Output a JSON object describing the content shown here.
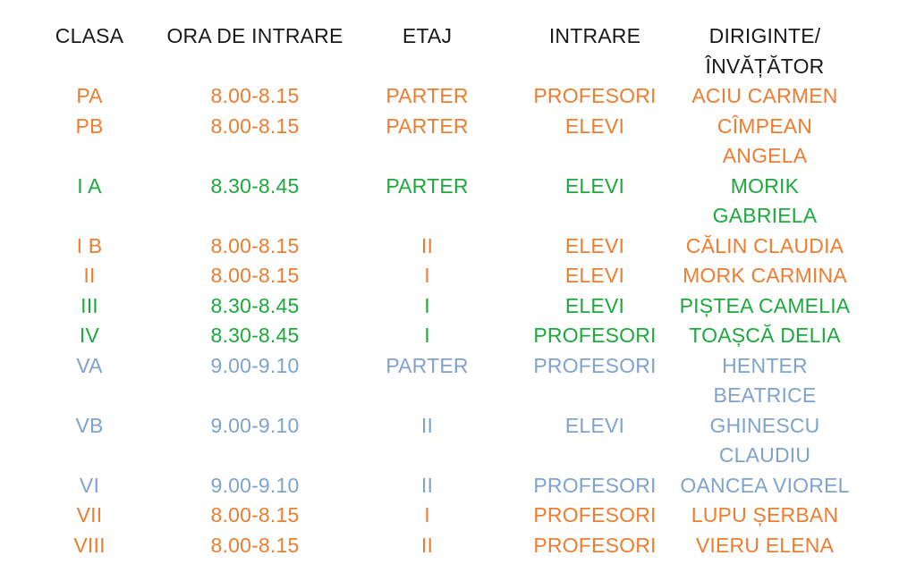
{
  "headers": {
    "clasa": "CLASA",
    "ora": "ORA DE INTRARE",
    "etaj": "ETAJ",
    "intrare": "INTRARE",
    "diriginte_line1": "DIRIGINTE/",
    "diriginte_line2": "ÎNVĂȚĂTOR"
  },
  "colors": {
    "orange": "#ED7D31",
    "green": "#1BAA3B",
    "blue": "#7FA3CE",
    "header": "#1a1a1a"
  },
  "rows": [
    {
      "clasa": "PA",
      "ora": "8.00-8.15",
      "etaj": "PARTER",
      "intrare": "PROFESORI",
      "diriginte": [
        "ACIU CARMEN"
      ],
      "color": "orange"
    },
    {
      "clasa": "PB",
      "ora": "8.00-8.15",
      "etaj": "PARTER",
      "intrare": "ELEVI",
      "diriginte": [
        "CÎMPEAN",
        "ANGELA"
      ],
      "color": "orange"
    },
    {
      "clasa": "I A",
      "ora": "8.30-8.45",
      "etaj": "PARTER",
      "intrare": "ELEVI",
      "diriginte": [
        "MORIK",
        "GABRIELA"
      ],
      "color": "green"
    },
    {
      "clasa": "I B",
      "ora": "8.00-8.15",
      "etaj": "II",
      "intrare": "ELEVI",
      "diriginte": [
        "CĂLIN CLAUDIA"
      ],
      "color": "orange"
    },
    {
      "clasa": "II",
      "ora": "8.00-8.15",
      "etaj": "I",
      "intrare": "ELEVI",
      "diriginte": [
        "MORK CARMINA"
      ],
      "color": "orange"
    },
    {
      "clasa": "III",
      "ora": "8.30-8.45",
      "etaj": "I",
      "intrare": "ELEVI",
      "diriginte": [
        "PIȘTEA CAMELIA"
      ],
      "color": "green"
    },
    {
      "clasa": "IV",
      "ora": "8.30-8.45",
      "etaj": "I",
      "intrare": "PROFESORI",
      "diriginte": [
        "TOAȘCĂ DELIA"
      ],
      "color": "green"
    },
    {
      "clasa": "VA",
      "ora": "9.00-9.10",
      "etaj": "PARTER",
      "intrare": "PROFESORI",
      "diriginte": [
        "HENTER",
        "BEATRICE"
      ],
      "color": "blue"
    },
    {
      "clasa": "VB",
      "ora": "9.00-9.10",
      "etaj": "II",
      "intrare": "ELEVI",
      "diriginte": [
        "GHINESCU",
        "CLAUDIU"
      ],
      "color": "blue"
    },
    {
      "clasa": "VI",
      "ora": "9.00-9.10",
      "etaj": "II",
      "intrare": "PROFESORI",
      "diriginte": [
        "OANCEA VIOREL"
      ],
      "color": "blue"
    },
    {
      "clasa": "VII",
      "ora": "8.00-8.15",
      "etaj": "I",
      "intrare": "PROFESORI",
      "diriginte": [
        "LUPU ȘERBAN"
      ],
      "color": "orange"
    },
    {
      "clasa": "VIII",
      "ora": "8.00-8.15",
      "etaj": "II",
      "intrare": "PROFESORI",
      "diriginte": [
        "VIERU ELENA"
      ],
      "color": "orange"
    }
  ]
}
